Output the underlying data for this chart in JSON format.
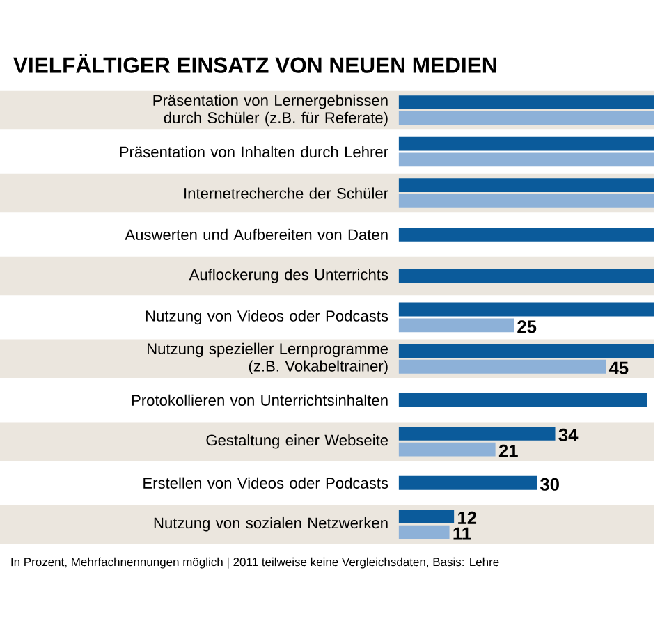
{
  "chart_data": {
    "type": "bar",
    "orientation": "horizontal",
    "title": "VIELFÄLTIGER EINSATZ VON NEUEN MEDIEN",
    "categories": [
      "Präsentation von Lernergebnissen durch Schüler (z.B. für Referate)",
      "Präsentation von Inhalten durch Lehrer",
      "Internetrecherche der Schüler",
      "Auswerten und Aufbereiten von Daten",
      "Auflockerung des Unterrichts",
      "Nutzung von Videos oder Podcasts",
      "Nutzung spezieller Lernprogramme (z.B. Vokabeltrainer)",
      "Protokollieren von Unterrichtsinhalten",
      "Gestaltung einer Webseite",
      "Erstellen von Videos oder Podcasts",
      "Nutzung von sozialen Netzwerken"
    ],
    "series": [
      {
        "color": "#0b5b9b",
        "values": [
          55.5,
          55.5,
          55.5,
          55.5,
          55.5,
          55.5,
          55.5,
          54,
          34,
          30,
          12
        ],
        "value_labels": [
          null,
          null,
          null,
          null,
          null,
          null,
          null,
          null,
          "34",
          "30",
          "12"
        ]
      },
      {
        "color": "#8db1d8",
        "values": [
          55.5,
          55.5,
          55.5,
          null,
          null,
          25,
          45,
          null,
          21,
          null,
          11
        ],
        "value_labels": [
          null,
          null,
          null,
          null,
          null,
          "25",
          "45",
          null,
          "21",
          null,
          "11"
        ]
      }
    ],
    "xlim": [
      0,
      55.5
    ],
    "tick_labels": "y",
    "annotations": [
      "In Prozent, Mehrfachnennungen möglich | 2011 teilweise keine Vergleichsdaten, Basis: Lehre"
    ]
  }
}
